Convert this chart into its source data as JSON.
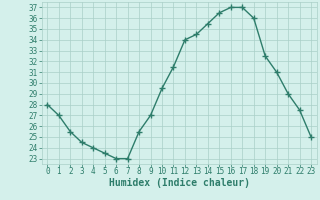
{
  "x": [
    0,
    1,
    2,
    3,
    4,
    5,
    6,
    7,
    8,
    9,
    10,
    11,
    12,
    13,
    14,
    15,
    16,
    17,
    18,
    19,
    20,
    21,
    22,
    23
  ],
  "y": [
    28.0,
    27.0,
    25.5,
    24.5,
    24.0,
    23.5,
    23.0,
    23.0,
    25.5,
    27.0,
    29.5,
    31.5,
    34.0,
    34.5,
    35.5,
    36.5,
    37.0,
    37.0,
    36.0,
    32.5,
    31.0,
    29.0,
    27.5,
    25.0
  ],
  "line_color": "#2e7d6b",
  "marker": "+",
  "markersize": 4,
  "linewidth": 1.0,
  "xlabel": "Humidex (Indice chaleur)",
  "xlim": [
    -0.5,
    23.5
  ],
  "ylim": [
    22.5,
    37.5
  ],
  "yticks": [
    23,
    24,
    25,
    26,
    27,
    28,
    29,
    30,
    31,
    32,
    33,
    34,
    35,
    36,
    37
  ],
  "xticks": [
    0,
    1,
    2,
    3,
    4,
    5,
    6,
    7,
    8,
    9,
    10,
    11,
    12,
    13,
    14,
    15,
    16,
    17,
    18,
    19,
    20,
    21,
    22,
    23
  ],
  "xtick_labels": [
    "0",
    "1",
    "2",
    "3",
    "4",
    "5",
    "6",
    "7",
    "8",
    "9",
    "10",
    "11",
    "12",
    "13",
    "14",
    "15",
    "16",
    "17",
    "18",
    "19",
    "20",
    "21",
    "22",
    "23"
  ],
  "background_color": "#d4f0eb",
  "grid_color": "#aacfc8",
  "line_dark_color": "#2e7d6b",
  "tick_fontsize": 5.5,
  "xlabel_fontsize": 7,
  "xlabel_fontweight": "bold"
}
